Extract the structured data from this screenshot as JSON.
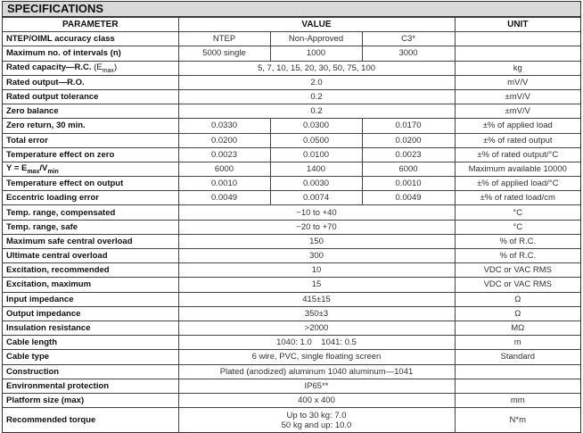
{
  "title": "SPECIFICATIONS",
  "headers": {
    "parameter": "PARAMETER",
    "value": "VALUE",
    "unit": "UNIT"
  },
  "rows": [
    {
      "p": "NTEP/OIML accuracy class",
      "v": [
        "NTEP",
        "Non-Approved",
        "C3*"
      ],
      "u": ""
    },
    {
      "p": "Maximum no. of intervals (n)",
      "v": [
        "5000 single",
        "1000",
        "3000"
      ],
      "u": ""
    },
    {
      "p": "Rated capacity—R.C. (Emax)",
      "v": [
        "5, 7, 10, 15, 20, 30, 50, 75, 100"
      ],
      "u": "kg"
    },
    {
      "p": "Rated output—R.O.",
      "v": [
        "2.0"
      ],
      "u": "mV/V"
    },
    {
      "p": "Rated output tolerance",
      "v": [
        "0.2"
      ],
      "u": "±mV/V"
    },
    {
      "p": "Zero balance",
      "v": [
        "0.2"
      ],
      "u": "±mV/V"
    },
    {
      "p": "Zero return, 30 min.",
      "v": [
        "0.0330",
        "0.0300",
        "0.0170"
      ],
      "u": "±% of applied load"
    },
    {
      "p": "Total error",
      "v": [
        "0.0200",
        "0.0500",
        "0.0200"
      ],
      "u": "±% of rated output"
    },
    {
      "p": "Temperature effect on zero",
      "v": [
        "0.0023",
        "0.0100",
        "0.0023"
      ],
      "u": "±% of rated output/°C"
    },
    {
      "p": "Y = Emax/Vmin",
      "v": [
        "6000",
        "1400",
        "6000"
      ],
      "u": "Maximum available 10000"
    },
    {
      "p": "Temperature effect on output",
      "v": [
        "0.0010",
        "0.0030",
        "0.0010"
      ],
      "u": "±% of applied load/°C"
    },
    {
      "p": "Eccentric loading error",
      "v": [
        "0.0049",
        "0.0074",
        "0.0049"
      ],
      "u": "±% of rated load/cm"
    },
    {
      "p": "Temp. range, compensated",
      "v": [
        "−10 to +40"
      ],
      "u": "°C"
    },
    {
      "p": "Temp. range, safe",
      "v": [
        "−20 to +70"
      ],
      "u": "°C"
    },
    {
      "p": "Maximum safe central overload",
      "v": [
        "150"
      ],
      "u": "% of R.C."
    },
    {
      "p": "Ultimate central overload",
      "v": [
        "300"
      ],
      "u": "% of R.C."
    },
    {
      "p": "Excitation, recommended",
      "v": [
        "10"
      ],
      "u": "VDC or VAC RMS"
    },
    {
      "p": "Excitation, maximum",
      "v": [
        "15"
      ],
      "u": "VDC or VAC RMS"
    },
    {
      "p": "Input impedance",
      "v": [
        "415±15"
      ],
      "u": "Ω"
    },
    {
      "p": "Output impedance",
      "v": [
        "350±3"
      ],
      "u": "Ω"
    },
    {
      "p": "Insulation resistance",
      "v": [
        ">2000"
      ],
      "u": "MΩ"
    },
    {
      "p": "Cable length",
      "v": [
        "1040: 1.0    1041: 0.5"
      ],
      "u": "m"
    },
    {
      "p": "Cable type",
      "v": [
        "6 wire, PVC, single floating screen"
      ],
      "u": "Standard"
    },
    {
      "p": "Construction",
      "v": [
        "Plated (anodized) aluminum 1040 aluminum—1041"
      ],
      "u": ""
    },
    {
      "p": "Environmental protection",
      "v": [
        "IP65**"
      ],
      "u": ""
    },
    {
      "p": "Platform size (max)",
      "v": [
        "400 x 400"
      ],
      "u": "mm"
    },
    {
      "p": "Recommended torque",
      "v": [
        "Up to 30 kg: 7.0",
        "50 kg and up: 10.0"
      ],
      "u": "N*m",
      "multiline": true
    }
  ]
}
